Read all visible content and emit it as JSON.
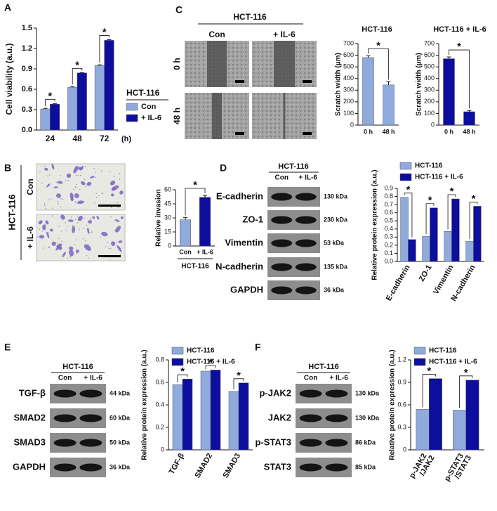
{
  "figure": {
    "panel_labels": [
      "A",
      "B",
      "C",
      "D",
      "E",
      "F"
    ],
    "scratch": {
      "header": "HCT-116",
      "columns": [
        "Con",
        "+ IL-6"
      ],
      "rows": [
        "0 h",
        "48 h"
      ]
    },
    "invasion": {
      "group": "HCT-116",
      "rows": [
        "Con",
        "+ IL-6"
      ]
    },
    "blots": [
      {
        "header": "HCT-116",
        "lanes": [
          "Con",
          "+ IL-6"
        ],
        "rows": [
          {
            "label": "E-cadherin",
            "size": "130 kDa"
          },
          {
            "label": "ZO-1",
            "size": "230 kDa"
          },
          {
            "label": "Vimentin",
            "size": "53 kDa"
          },
          {
            "label": "N-cadherin",
            "size": "135 kDa"
          },
          {
            "label": "GAPDH",
            "size": "36 kDa"
          }
        ]
      },
      {
        "header": "HCT-116",
        "lanes": [
          "Con",
          "+ IL-6"
        ],
        "rows": [
          {
            "label": "TGF-β",
            "size": "44 kDa"
          },
          {
            "label": "SMAD2",
            "size": "60 kDa"
          },
          {
            "label": "SMAD3",
            "size": "50 kDa"
          },
          {
            "label": "GAPDH",
            "size": "36 kDa"
          }
        ]
      },
      {
        "header": "HCT-116",
        "lanes": [
          "Con",
          "+ IL-6"
        ],
        "rows": [
          {
            "label": "p-JAK2",
            "size": "130 kDa"
          },
          {
            "label": "JAK2",
            "size": "130 kDa"
          },
          {
            "label": "p-STAT3",
            "size": "86 kDa"
          },
          {
            "label": "STAT3",
            "size": "85 kDa"
          }
        ]
      }
    ]
  },
  "chart_data": [
    {
      "type": "bar",
      "ylabel": "Cell viability (a.u.)",
      "xlabel": "(h)",
      "categories": [
        "24",
        "48",
        "72"
      ],
      "series": [
        {
          "name": "Con",
          "color": "#8faadc",
          "values": [
            0.31,
            0.63,
            0.95
          ],
          "errors": [
            0.01,
            0.01,
            0.01
          ]
        },
        {
          "name": "+ IL-6",
          "color": "#0d0d9e",
          "values": [
            0.38,
            0.84,
            1.32
          ],
          "errors": [
            0.01,
            0.005,
            0.01
          ]
        }
      ],
      "legend_title": "HCT-116",
      "annotations": [
        "*",
        "*",
        "*"
      ],
      "ylim": [
        0,
        1.5
      ],
      "yticks": [
        {
          "value": 0,
          "label": "0.0"
        },
        0.3,
        0.6,
        0.9,
        1.2,
        1.5
      ]
    },
    {
      "type": "bar",
      "title": "HCT-116",
      "ylabel": "Scratch width (μm)",
      "categories": [
        "0 h",
        "48 h"
      ],
      "values": [
        580,
        345
      ],
      "errors": [
        15,
        28
      ],
      "color": "#8faadc",
      "annotations": [
        "*"
      ],
      "ylim": [
        0,
        700
      ],
      "yticks": [
        0,
        100,
        200,
        300,
        400,
        500,
        600,
        700
      ]
    },
    {
      "type": "bar",
      "title": "HCT-116 + IL-6",
      "ylabel": "Scratch width (μm)",
      "categories": [
        "0 h",
        "48 h"
      ],
      "values": [
        570,
        115
      ],
      "errors": [
        15,
        10
      ],
      "color": "#0d0d9e",
      "annotations": [
        "*"
      ],
      "ylim": [
        0,
        700
      ],
      "yticks": [
        0,
        100,
        200,
        300,
        400,
        500,
        600,
        700
      ]
    },
    {
      "type": "bar",
      "ylabel": "Relative invasion",
      "xlabel": "HCT-116",
      "categories": [
        "Con",
        "+ IL-6"
      ],
      "values": [
        28,
        52
      ],
      "errors": [
        2.5,
        2
      ],
      "colors": [
        "#8faadc",
        "#0d0d9e"
      ],
      "annotations": [
        "*"
      ],
      "ylim": [
        0,
        60
      ],
      "yticks": [
        0,
        15,
        30,
        45,
        60
      ]
    },
    {
      "type": "bar",
      "ylabel": "Relative protein expression (a.u.)",
      "categories": [
        "E-cadherin",
        "ZO-1",
        "Vimentin",
        "N-cadherin"
      ],
      "series": [
        {
          "name": "HCT-116",
          "color": "#8faadc",
          "values": [
            0.79,
            0.31,
            0.37,
            0.25
          ]
        },
        {
          "name": "HCT-116 + IL-6",
          "color": "#0d0d9e",
          "values": [
            0.27,
            0.66,
            0.77,
            0.68
          ]
        }
      ],
      "annotations": [
        "*",
        "*",
        "*",
        "*"
      ],
      "ylim": [
        0,
        0.9
      ],
      "yticks": [
        {
          "value": 0,
          "label": "0.0"
        },
        0.1,
        0.2,
        0.3,
        0.4,
        0.5,
        0.6,
        0.7,
        0.8,
        0.9
      ]
    },
    {
      "type": "bar",
      "ylabel": "Relative protein expression (a.u.)",
      "categories": [
        "TGF-β",
        "SMAD2",
        "SMAD3"
      ],
      "series": [
        {
          "name": "HCT-116",
          "color": "#8faadc",
          "values": [
            0.58,
            0.7,
            0.52
          ]
        },
        {
          "name": "HCT-116 + IL-6",
          "color": "#0d0d9e",
          "values": [
            0.63,
            0.71,
            0.595
          ]
        }
      ],
      "annotations": [
        "*",
        "*",
        "*"
      ],
      "ylim": [
        0,
        0.8
      ],
      "yticks": [
        0,
        0.2,
        0.4,
        0.6,
        0.8
      ]
    },
    {
      "type": "bar",
      "ylabel": "Relative protein expression (a.u.)",
      "categories": [
        "p-JAK2 /JAK2",
        "p-STAT3 /STAT3"
      ],
      "series": [
        {
          "name": "HCT-116",
          "color": "#8faadc",
          "values": [
            0.54,
            0.53
          ]
        },
        {
          "name": "HCT-116 + IL-6",
          "color": "#0d0d9e",
          "values": [
            0.95,
            0.93
          ]
        }
      ],
      "annotations": [
        "*",
        "*"
      ],
      "ylim": [
        0,
        1.2
      ],
      "yticks": [
        0,
        0.3,
        0.6,
        0.9,
        1.2
      ]
    }
  ]
}
